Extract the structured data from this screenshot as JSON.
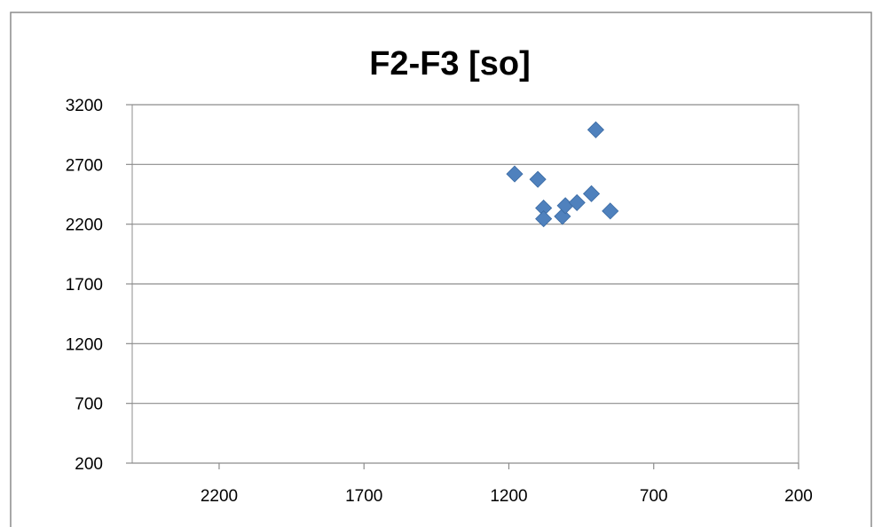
{
  "chart_data": {
    "type": "scatter",
    "title": "F2-F3 [so]",
    "xlabel": "",
    "ylabel": "",
    "x_reversed": true,
    "xlim": [
      2500,
      200
    ],
    "ylim": [
      200,
      3200
    ],
    "xticks": [
      2200,
      1700,
      1200,
      700,
      200
    ],
    "yticks": [
      200,
      700,
      1200,
      1700,
      2200,
      2700,
      3200
    ],
    "grid": {
      "horizontal": true,
      "vertical": false
    },
    "legend": "none",
    "marker": "diamond",
    "series": [
      {
        "points": [
          {
            "x": 1180,
            "y": 2620
          },
          {
            "x": 1100,
            "y": 2575
          },
          {
            "x": 900,
            "y": 2990
          },
          {
            "x": 1080,
            "y": 2335
          },
          {
            "x": 1080,
            "y": 2245
          },
          {
            "x": 1015,
            "y": 2265
          },
          {
            "x": 1005,
            "y": 2355
          },
          {
            "x": 965,
            "y": 2380
          },
          {
            "x": 915,
            "y": 2455
          },
          {
            "x": 850,
            "y": 2310
          }
        ]
      }
    ]
  },
  "colors": {
    "marker": "#4F81BD",
    "marker_stroke": "#3A6AA3",
    "gridline": "#8C8C8C",
    "axis": "#8C8C8C",
    "frame": "#8C8C8C",
    "text": "#000000"
  }
}
